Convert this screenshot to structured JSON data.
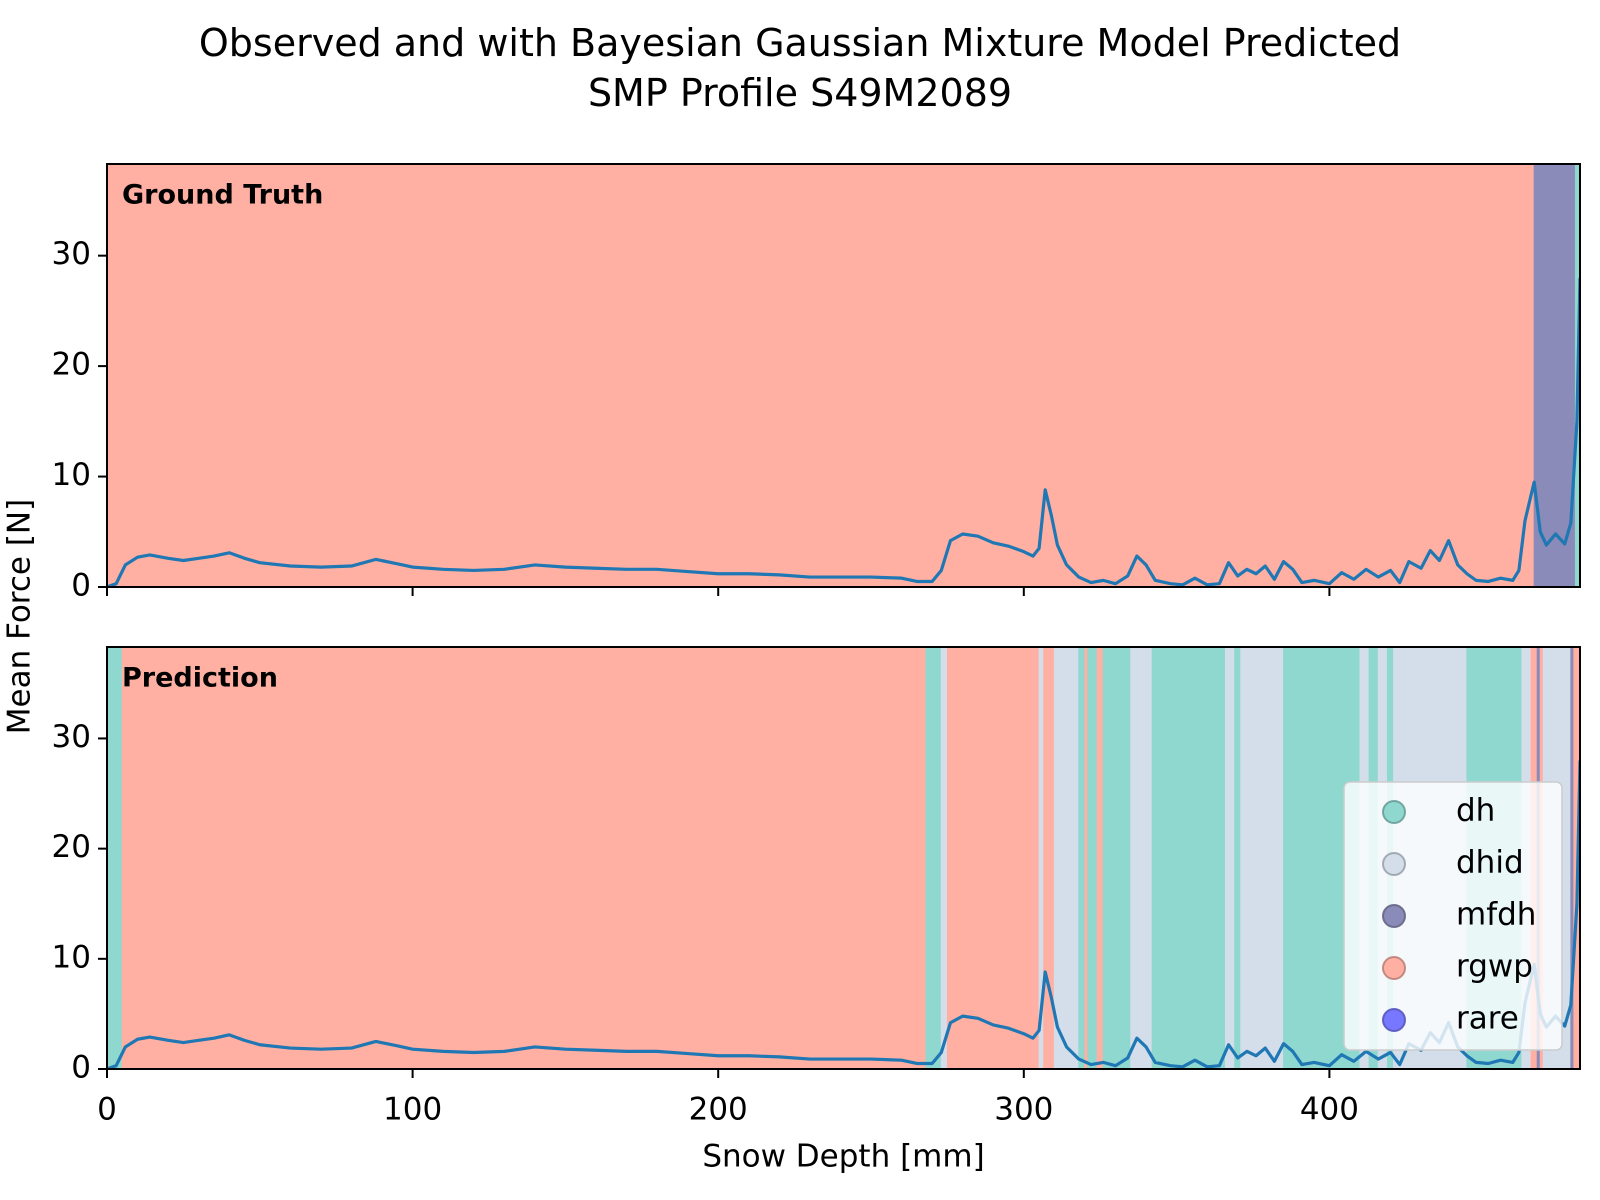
{
  "chart_data": [
    {
      "type": "line",
      "title": "Observed and with Bayesian Gaussian Mixture Model Predicted\nSMP Profile S49M2089",
      "annotation": "Ground Truth",
      "ylabel": "Mean Force [N]",
      "xlim": [
        0,
        482
      ],
      "xticks": [
        0,
        100,
        200,
        300,
        400
      ],
      "ylim": [
        0,
        38.3
      ],
      "yticks": [
        0,
        10,
        20,
        30
      ],
      "color": "#1f77b4",
      "x": [
        0,
        3,
        6,
        10,
        14,
        20,
        25,
        30,
        35,
        40,
        45,
        50,
        60,
        70,
        80,
        88,
        95,
        100,
        110,
        120,
        130,
        140,
        150,
        160,
        170,
        180,
        190,
        200,
        210,
        220,
        230,
        240,
        250,
        260,
        265,
        270,
        273,
        276,
        280,
        285,
        290,
        295,
        300,
        303,
        305,
        307,
        309,
        311,
        314,
        318,
        322,
        326,
        330,
        334,
        337,
        340,
        343,
        348,
        352,
        356,
        360,
        364,
        367,
        370,
        373,
        376,
        379,
        382,
        385,
        388,
        391,
        395,
        400,
        404,
        408,
        412,
        416,
        420,
        423,
        426,
        430,
        433,
        436,
        439,
        442,
        445,
        448,
        452,
        456,
        460,
        462,
        464,
        467,
        469,
        471,
        474,
        477,
        479,
        481,
        482
      ],
      "values": [
        0,
        0.3,
        2,
        2.7,
        2.9,
        2.6,
        2.4,
        2.6,
        2.8,
        3.1,
        2.6,
        2.2,
        1.9,
        1.8,
        1.9,
        2.5,
        2.1,
        1.8,
        1.6,
        1.5,
        1.6,
        2.0,
        1.8,
        1.7,
        1.6,
        1.6,
        1.4,
        1.2,
        1.2,
        1.1,
        0.9,
        0.9,
        0.9,
        0.8,
        0.5,
        0.5,
        1.5,
        4.2,
        4.8,
        4.6,
        4.0,
        3.7,
        3.2,
        2.8,
        3.5,
        8.8,
        6.5,
        3.8,
        2.0,
        0.9,
        0.4,
        0.6,
        0.3,
        1.0,
        2.8,
        2.0,
        0.6,
        0.3,
        0.2,
        0.8,
        0.2,
        0.3,
        2.2,
        1.0,
        1.6,
        1.2,
        1.9,
        0.7,
        2.3,
        1.6,
        0.4,
        0.6,
        0.3,
        1.3,
        0.7,
        1.6,
        0.9,
        1.5,
        0.4,
        2.3,
        1.7,
        3.3,
        2.4,
        4.2,
        2.0,
        1.2,
        0.6,
        0.5,
        0.8,
        0.6,
        1.5,
        6.0,
        9.5,
        5.0,
        3.8,
        4.8,
        3.9,
        5.8,
        15,
        28
      ],
      "segments": [
        {
          "start": 0,
          "end": 467,
          "label": "rgwp"
        },
        {
          "start": 467,
          "end": 480.5,
          "label": "mfdh"
        },
        {
          "start": 480.5,
          "end": 482,
          "label": "dh"
        }
      ]
    },
    {
      "type": "line",
      "annotation": "Prediction",
      "xlabel": "Snow Depth [mm]",
      "xlim": [
        0,
        482
      ],
      "xticks": [
        0,
        100,
        200,
        300,
        400
      ],
      "ylim": [
        0,
        38.3
      ],
      "yticks": [
        0,
        10,
        20,
        30
      ],
      "color": "#1f77b4",
      "legend": "center right",
      "classes": [
        {
          "name": "dh",
          "color": "#8fd8d0"
        },
        {
          "name": "dhid",
          "color": "#d3deea"
        },
        {
          "name": "mfdh",
          "color": "#8a8bb8"
        },
        {
          "name": "rgwp",
          "color": "#ffb0a3"
        },
        {
          "name": "rare",
          "color": "#7777ff"
        }
      ],
      "x": [
        0,
        3,
        6,
        10,
        14,
        20,
        25,
        30,
        35,
        40,
        45,
        50,
        60,
        70,
        80,
        88,
        95,
        100,
        110,
        120,
        130,
        140,
        150,
        160,
        170,
        180,
        190,
        200,
        210,
        220,
        230,
        240,
        250,
        260,
        265,
        270,
        273,
        276,
        280,
        285,
        290,
        295,
        300,
        303,
        305,
        307,
        309,
        311,
        314,
        318,
        322,
        326,
        330,
        334,
        337,
        340,
        343,
        348,
        352,
        356,
        360,
        364,
        367,
        370,
        373,
        376,
        379,
        382,
        385,
        388,
        391,
        395,
        400,
        404,
        408,
        412,
        416,
        420,
        423,
        426,
        430,
        433,
        436,
        439,
        442,
        445,
        448,
        452,
        456,
        460,
        462,
        464,
        467,
        469,
        471,
        474,
        477,
        479,
        481,
        482
      ],
      "values": [
        0,
        0.3,
        2,
        2.7,
        2.9,
        2.6,
        2.4,
        2.6,
        2.8,
        3.1,
        2.6,
        2.2,
        1.9,
        1.8,
        1.9,
        2.5,
        2.1,
        1.8,
        1.6,
        1.5,
        1.6,
        2.0,
        1.8,
        1.7,
        1.6,
        1.6,
        1.4,
        1.2,
        1.2,
        1.1,
        0.9,
        0.9,
        0.9,
        0.8,
        0.5,
        0.5,
        1.5,
        4.2,
        4.8,
        4.6,
        4.0,
        3.7,
        3.2,
        2.8,
        3.5,
        8.8,
        6.5,
        3.8,
        2.0,
        0.9,
        0.4,
        0.6,
        0.3,
        1.0,
        2.8,
        2.0,
        0.6,
        0.3,
        0.2,
        0.8,
        0.2,
        0.3,
        2.2,
        1.0,
        1.6,
        1.2,
        1.9,
        0.7,
        2.3,
        1.6,
        0.4,
        0.6,
        0.3,
        1.3,
        0.7,
        1.6,
        0.9,
        1.5,
        0.4,
        2.3,
        1.7,
        3.3,
        2.4,
        4.2,
        2.0,
        1.2,
        0.6,
        0.5,
        0.8,
        0.6,
        1.5,
        6.0,
        9.5,
        5.0,
        3.8,
        4.8,
        3.9,
        5.8,
        15,
        28
      ],
      "segments": [
        {
          "start": 0,
          "end": 5,
          "label": "dh"
        },
        {
          "start": 5,
          "end": 268,
          "label": "rgwp"
        },
        {
          "start": 268,
          "end": 273,
          "label": "dh"
        },
        {
          "start": 273,
          "end": 275,
          "label": "dhid"
        },
        {
          "start": 275,
          "end": 305,
          "label": "rgwp"
        },
        {
          "start": 305,
          "end": 306.5,
          "label": "dhid"
        },
        {
          "start": 306.5,
          "end": 310,
          "label": "rgwp"
        },
        {
          "start": 310,
          "end": 318,
          "label": "dhid"
        },
        {
          "start": 318,
          "end": 320,
          "label": "dh"
        },
        {
          "start": 320,
          "end": 321,
          "label": "rgwp"
        },
        {
          "start": 321,
          "end": 324,
          "label": "dh"
        },
        {
          "start": 324,
          "end": 326,
          "label": "rgwp"
        },
        {
          "start": 326,
          "end": 335,
          "label": "dh"
        },
        {
          "start": 335,
          "end": 342,
          "label": "dhid"
        },
        {
          "start": 342,
          "end": 366,
          "label": "dh"
        },
        {
          "start": 366,
          "end": 369,
          "label": "dhid"
        },
        {
          "start": 369,
          "end": 371,
          "label": "dh"
        },
        {
          "start": 371,
          "end": 385,
          "label": "dhid"
        },
        {
          "start": 385,
          "end": 410,
          "label": "dh"
        },
        {
          "start": 410,
          "end": 413,
          "label": "dhid"
        },
        {
          "start": 413,
          "end": 416,
          "label": "dh"
        },
        {
          "start": 416,
          "end": 419,
          "label": "dhid"
        },
        {
          "start": 419,
          "end": 421,
          "label": "dh"
        },
        {
          "start": 421,
          "end": 445,
          "label": "dhid"
        },
        {
          "start": 445,
          "end": 463,
          "label": "dh"
        },
        {
          "start": 463,
          "end": 466,
          "label": "dhid"
        },
        {
          "start": 466,
          "end": 468,
          "label": "rgwp"
        },
        {
          "start": 468,
          "end": 469,
          "label": "mfdh"
        },
        {
          "start": 469,
          "end": 470,
          "label": "rgwp"
        },
        {
          "start": 470,
          "end": 479,
          "label": "dhid"
        },
        {
          "start": 479,
          "end": 480,
          "label": "mfdh"
        },
        {
          "start": 480,
          "end": 482,
          "label": "rgwp"
        }
      ]
    }
  ]
}
